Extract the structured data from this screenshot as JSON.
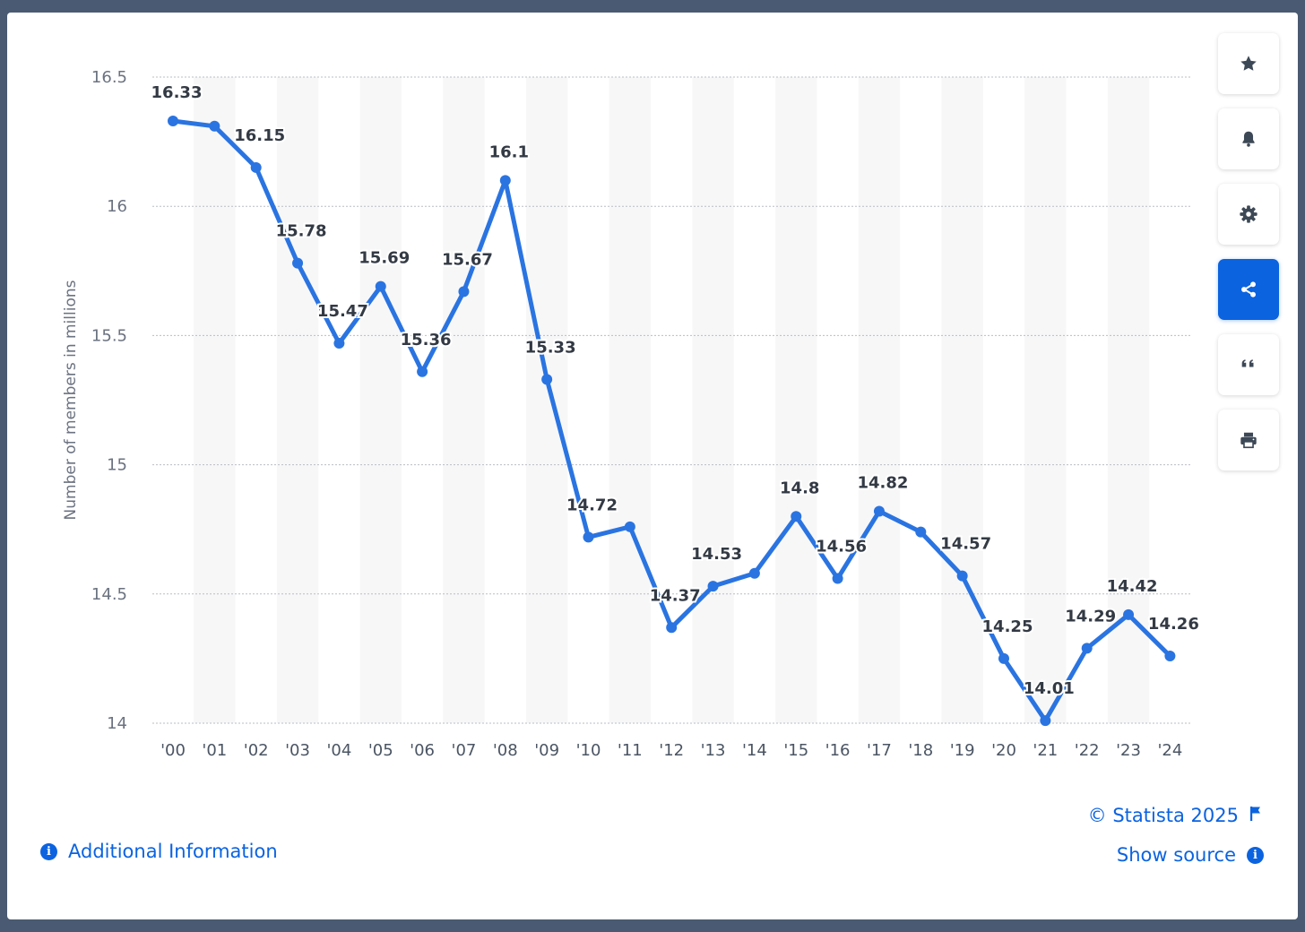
{
  "chart_data": {
    "type": "line",
    "ylabel": "Number of members in millions",
    "ylim": [
      14,
      16.5
    ],
    "yticks": [
      14,
      14.5,
      15,
      15.5,
      16,
      16.5
    ],
    "grid": true,
    "color": "#2a74e1",
    "x": [
      "'00",
      "'01",
      "'02",
      "'03",
      "'04",
      "'05",
      "'06",
      "'07",
      "'08",
      "'09",
      "'10",
      "'11",
      "'12",
      "'13",
      "'14",
      "'15",
      "'16",
      "'17",
      "'18",
      "'19",
      "'20",
      "'21",
      "'22",
      "'23",
      "'24"
    ],
    "values": [
      16.33,
      16.31,
      16.15,
      15.78,
      15.47,
      15.69,
      15.36,
      15.67,
      16.1,
      15.33,
      14.72,
      14.76,
      14.37,
      14.53,
      14.58,
      14.8,
      14.56,
      14.82,
      14.74,
      14.57,
      14.25,
      14.01,
      14.29,
      14.42,
      14.26
    ],
    "data_labels": [
      "16.33",
      "",
      "16.15",
      "15.78",
      "15.47",
      "15.69",
      "15.36",
      "15.67",
      "16.1",
      "15.33",
      "14.72",
      "",
      "14.37",
      "14.53",
      "",
      "14.8",
      "14.56",
      "14.82",
      "",
      "14.57",
      "14.25",
      "14.01",
      "14.29",
      "14.42",
      "14.26"
    ]
  },
  "toolbar": {
    "items": [
      {
        "name": "favorite",
        "icon": "star-icon"
      },
      {
        "name": "notifications",
        "icon": "bell-icon"
      },
      {
        "name": "settings",
        "icon": "gear-icon"
      },
      {
        "name": "share",
        "icon": "share-icon",
        "active": true
      },
      {
        "name": "cite",
        "icon": "quote-icon"
      },
      {
        "name": "print",
        "icon": "printer-icon"
      }
    ]
  },
  "footer": {
    "additional_info": "Additional Information",
    "copyright": "© Statista 2025",
    "show_source": "Show source"
  },
  "colors": {
    "accent": "#0b63e0",
    "line": "#2a74e1",
    "frame": "#4a5a72"
  }
}
